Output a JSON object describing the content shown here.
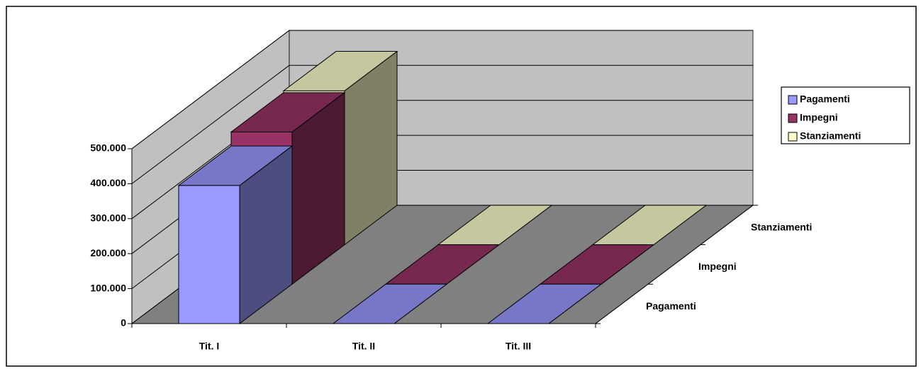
{
  "chart_data": {
    "type": "bar3d",
    "categories": [
      "Tit. I",
      "Tit. II",
      "Tit. III"
    ],
    "series": [
      {
        "name": "Pagamenti",
        "color": "#9999ff",
        "values": [
          395000,
          0,
          0
        ]
      },
      {
        "name": "Impegni",
        "color": "#993366",
        "values": [
          435000,
          0,
          0
        ]
      },
      {
        "name": "Stanziamenti",
        "color": "#ffffcc",
        "values": [
          440000,
          0,
          0
        ]
      }
    ],
    "ylim": [
      0,
      500000
    ],
    "yticks": [
      0,
      {
        "value": 100000,
        "label": "100.000"
      },
      {
        "value": 200000,
        "label": "200.000"
      },
      {
        "value": 300000,
        "label": "300.000"
      },
      {
        "value": 400000,
        "label": "400.000"
      },
      {
        "value": 500000,
        "label": "500.000"
      }
    ],
    "grid": true
  }
}
